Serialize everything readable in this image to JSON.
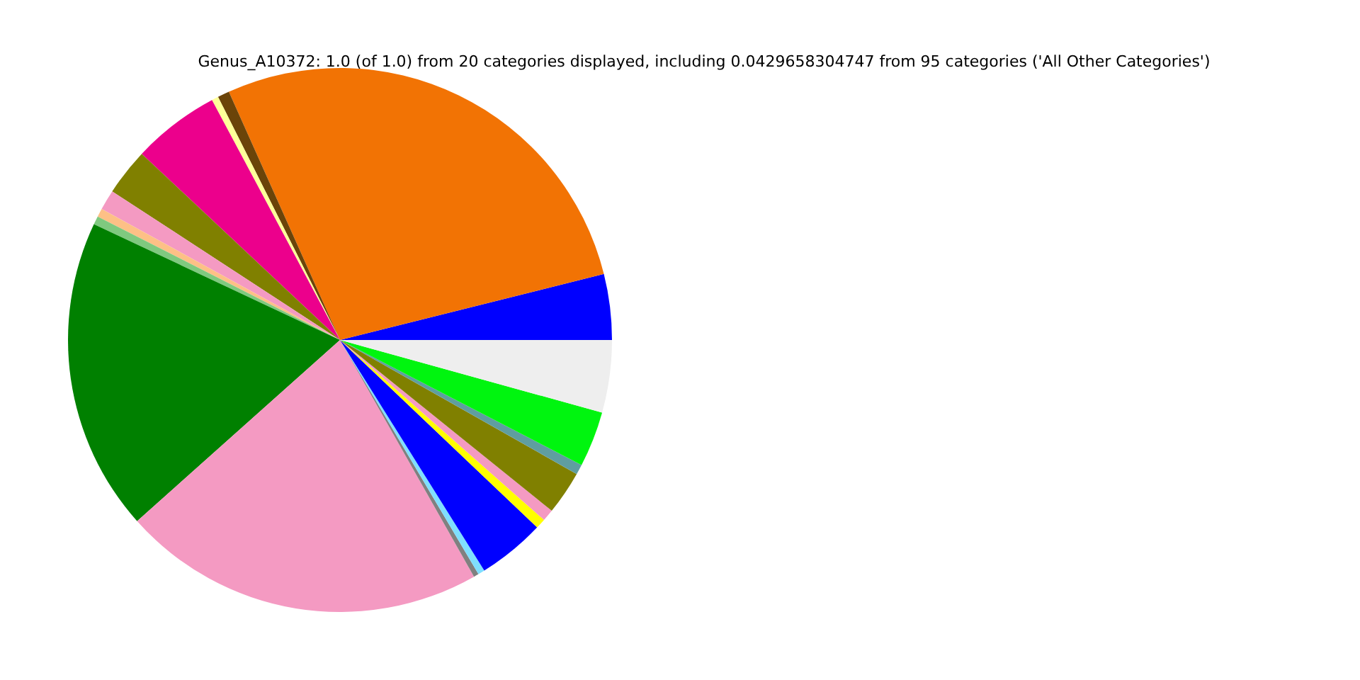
{
  "chart_data": {
    "type": "pie",
    "title": "Genus_A10372: 1.0 (of 1.0) from 20 categories displayed, including 0.0429658304747 from 95 categories ('All Other Categories')",
    "categories": [
      null,
      null,
      null,
      null,
      null,
      null,
      null,
      null,
      null,
      null,
      null,
      null,
      null,
      null,
      null,
      null,
      null,
      null,
      null,
      null
    ],
    "values": [
      3.9,
      27.8,
      0.7,
      0.4,
      5.2,
      2.8,
      1.2,
      0.5,
      0.5,
      18.6,
      21.6,
      0.3,
      0.4,
      4.0,
      0.6,
      0.7,
      2.6,
      0.6,
      3.3,
      4.3
    ],
    "colors": [
      "#0000ff",
      "#f27304",
      "#6b4409",
      "#ffff99",
      "#ec008c",
      "#808000",
      "#f49ac2",
      "#fdc086",
      "#7fc97f",
      "#008000",
      "#f49ac2",
      "#808080",
      "#7fdfff",
      "#0000ff",
      "#ffff00",
      "#f49ac2",
      "#808000",
      "#5f9ea0",
      "#00f50f",
      "#eeeeee"
    ]
  }
}
